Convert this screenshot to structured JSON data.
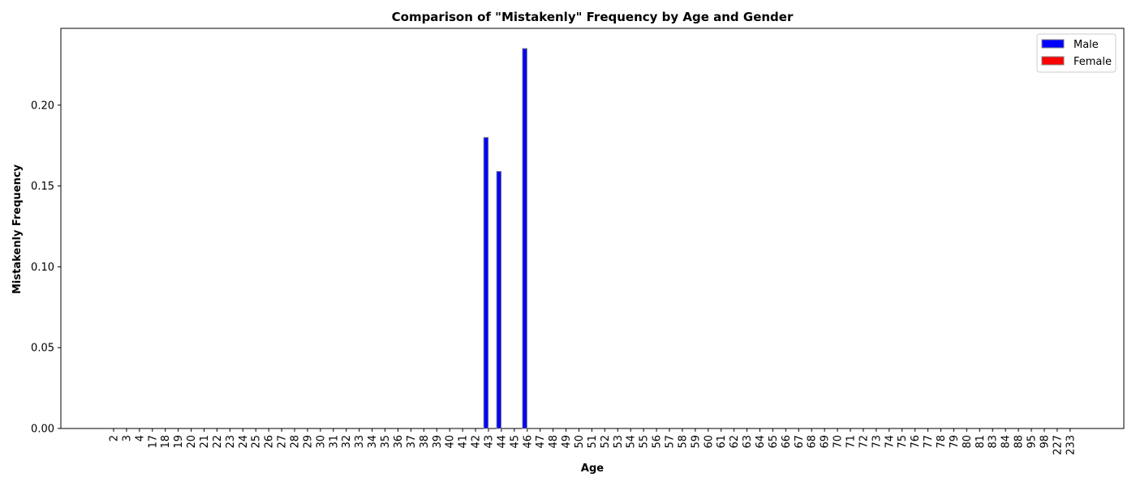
{
  "chart_data": {
    "type": "bar",
    "title": "Comparison of \"Mistakenly\" Frequency by Age and Gender",
    "xlabel": "Age",
    "ylabel": "Mistakenly Frequency",
    "ylim": [
      0,
      0.2475
    ],
    "yticks": [
      "0.00",
      "0.05",
      "0.10",
      "0.15",
      "0.20"
    ],
    "grid": false,
    "legend_position": "top-right",
    "categories": [
      "2",
      "3",
      "4",
      "17",
      "18",
      "19",
      "20",
      "21",
      "22",
      "23",
      "24",
      "25",
      "26",
      "27",
      "28",
      "29",
      "30",
      "31",
      "32",
      "33",
      "34",
      "35",
      "36",
      "37",
      "38",
      "39",
      "40",
      "41",
      "42",
      "43",
      "44",
      "45",
      "46",
      "47",
      "48",
      "49",
      "50",
      "51",
      "52",
      "53",
      "54",
      "55",
      "56",
      "57",
      "58",
      "59",
      "60",
      "61",
      "62",
      "63",
      "64",
      "65",
      "66",
      "67",
      "68",
      "69",
      "70",
      "71",
      "72",
      "73",
      "74",
      "75",
      "76",
      "77",
      "78",
      "79",
      "80",
      "81",
      "83",
      "84",
      "88",
      "95",
      "98",
      "227",
      "233"
    ],
    "series": [
      {
        "name": "Male",
        "color": "#0000ff",
        "values": [
          0,
          0,
          0,
          0,
          0,
          0,
          0,
          0,
          0,
          0,
          0,
          0,
          0,
          0,
          0,
          0,
          0,
          0,
          0,
          0,
          0,
          0,
          0,
          0,
          0,
          0,
          0,
          0,
          0,
          0.18,
          0.159,
          0,
          0.235,
          0,
          0,
          0,
          0,
          0,
          0,
          0,
          0,
          0,
          0,
          0,
          0,
          0,
          0,
          0,
          0,
          0,
          0,
          0,
          0,
          0,
          0,
          0,
          0,
          0,
          0,
          0,
          0,
          0,
          0,
          0,
          0,
          0,
          0,
          0,
          0,
          0,
          0,
          0,
          0,
          0,
          0
        ]
      },
      {
        "name": "Female",
        "color": "#ff0000",
        "values": [
          0,
          0,
          0,
          0,
          0,
          0,
          0,
          0,
          0,
          0,
          0,
          0,
          0,
          0,
          0,
          0,
          0,
          0,
          0,
          0,
          0,
          0,
          0,
          0,
          0,
          0,
          0,
          0,
          0,
          0,
          0,
          0,
          0,
          0,
          0,
          0,
          0,
          0,
          0,
          0,
          0,
          0,
          0,
          0,
          0,
          0,
          0,
          0,
          0,
          0,
          0,
          0,
          0,
          0,
          0,
          0,
          0,
          0,
          0,
          0,
          0,
          0,
          0,
          0,
          0,
          0,
          0,
          0,
          0,
          0,
          0,
          0,
          0,
          0,
          0
        ]
      }
    ]
  }
}
